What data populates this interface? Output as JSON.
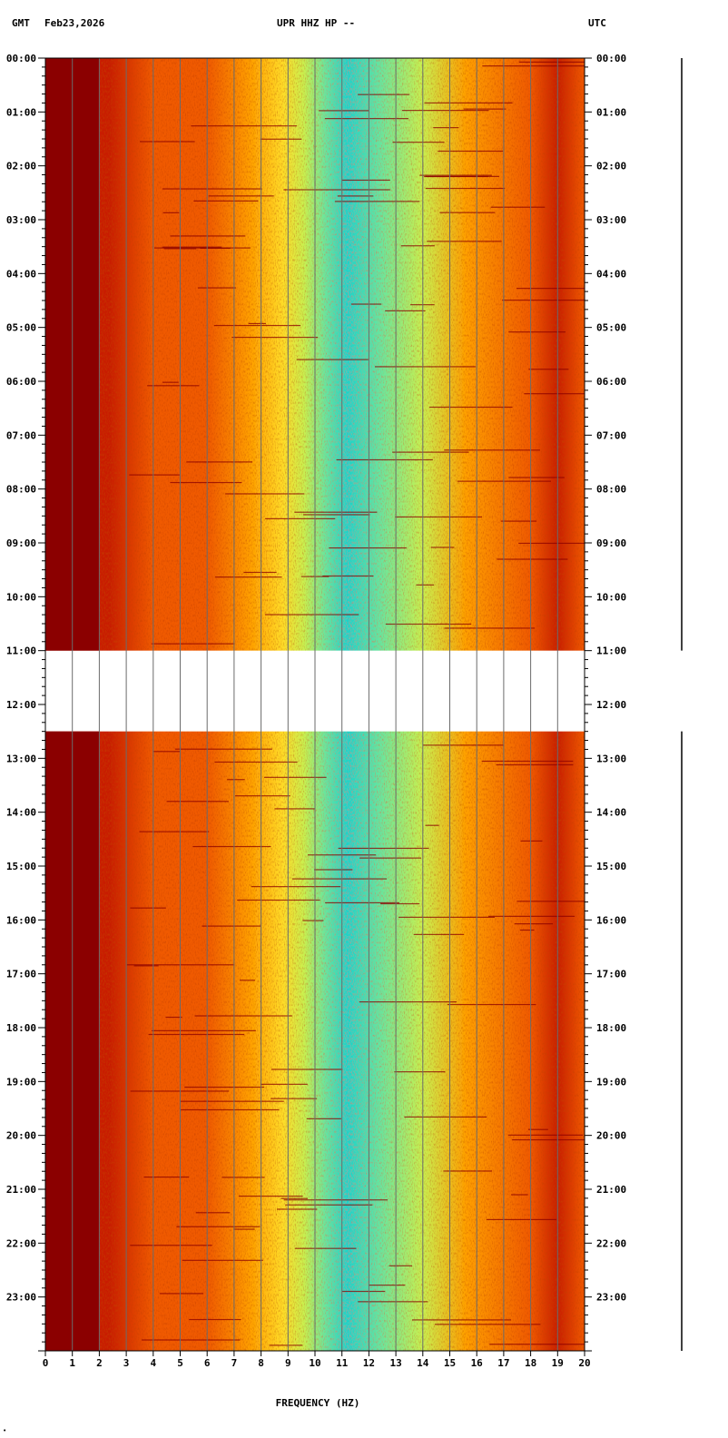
{
  "header": {
    "left_tz": "GMT",
    "date": "Feb23,2026",
    "station": "UPR HHZ HP --",
    "right_tz": "UTC"
  },
  "chart_data": {
    "type": "heatmap",
    "title": "UPR HHZ HP --",
    "xlabel": "FREQUENCY (HZ)",
    "ylabel": "",
    "xlim": [
      0,
      20
    ],
    "x_ticks": [
      "0",
      "1",
      "2",
      "3",
      "4",
      "5",
      "6",
      "7",
      "8",
      "9",
      "10",
      "11",
      "12",
      "13",
      "14",
      "15",
      "16",
      "17",
      "18",
      "19",
      "20"
    ],
    "y_ticks": [
      "00:00",
      "01:00",
      "02:00",
      "03:00",
      "04:00",
      "05:00",
      "06:00",
      "07:00",
      "08:00",
      "09:00",
      "10:00",
      "11:00",
      "12:00",
      "13:00",
      "14:00",
      "15:00",
      "16:00",
      "17:00",
      "18:00",
      "19:00",
      "20:00",
      "21:00",
      "22:00",
      "23:00"
    ],
    "data_gap": {
      "start": "11:00",
      "end": "12:30"
    },
    "colormap": [
      "#8b0000",
      "#c81e00",
      "#f05a00",
      "#ffa000",
      "#ffdc28",
      "#c8f050",
      "#64e6a0",
      "#1ed2c8"
    ],
    "peak_band_hz": [
      8,
      11
    ],
    "grid": true
  },
  "footer": {
    "corner_mark": "•"
  }
}
